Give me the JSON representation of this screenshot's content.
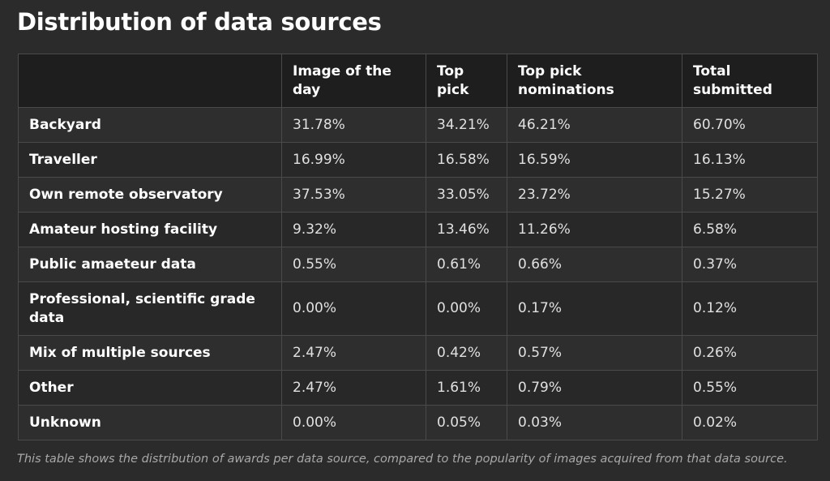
{
  "title": "Distribution of data sources",
  "table": {
    "headers": [
      "",
      "Image of the day",
      "Top pick",
      "Top pick nominations",
      "Total submitted"
    ],
    "rows": [
      {
        "label": "Backyard",
        "values": [
          "31.78%",
          "34.21%",
          "46.21%",
          "60.70%"
        ]
      },
      {
        "label": "Traveller",
        "values": [
          "16.99%",
          "16.58%",
          "16.59%",
          "16.13%"
        ]
      },
      {
        "label": "Own remote observatory",
        "values": [
          "37.53%",
          "33.05%",
          "23.72%",
          "15.27%"
        ]
      },
      {
        "label": "Amateur hosting facility",
        "values": [
          "9.32%",
          "13.46%",
          "11.26%",
          "6.58%"
        ]
      },
      {
        "label": "Public amaeteur data",
        "values": [
          "0.55%",
          "0.61%",
          "0.66%",
          "0.37%"
        ]
      },
      {
        "label": "Professional, scientific grade data",
        "values": [
          "0.00%",
          "0.00%",
          "0.17%",
          "0.12%"
        ]
      },
      {
        "label": "Mix of multiple sources",
        "values": [
          "2.47%",
          "0.42%",
          "0.57%",
          "0.26%"
        ]
      },
      {
        "label": "Other",
        "values": [
          "2.47%",
          "1.61%",
          "0.79%",
          "0.55%"
        ]
      },
      {
        "label": "Unknown",
        "values": [
          "0.00%",
          "0.05%",
          "0.03%",
          "0.02%"
        ]
      }
    ]
  },
  "caption": "This table shows the distribution of awards per data source, compared to the popularity of images acquired from that data source."
}
